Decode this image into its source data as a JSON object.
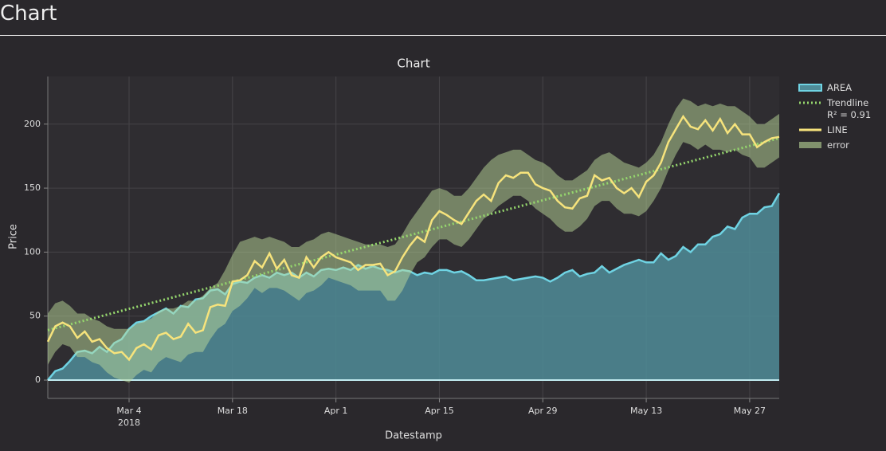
{
  "header": {
    "title": "Chart"
  },
  "chart_data": {
    "type": "line",
    "title": "Chart",
    "xlabel": "Datestamp",
    "ylabel": "Price",
    "x": [
      "2018-02-21",
      "2018-02-22",
      "2018-02-23",
      "2018-02-24",
      "2018-02-25",
      "2018-02-26",
      "2018-02-27",
      "2018-02-28",
      "2018-03-01",
      "2018-03-02",
      "2018-03-03",
      "2018-03-04",
      "2018-03-05",
      "2018-03-06",
      "2018-03-07",
      "2018-03-08",
      "2018-03-09",
      "2018-03-10",
      "2018-03-11",
      "2018-03-12",
      "2018-03-13",
      "2018-03-14",
      "2018-03-15",
      "2018-03-16",
      "2018-03-17",
      "2018-03-18",
      "2018-03-19",
      "2018-03-20",
      "2018-03-21",
      "2018-03-22",
      "2018-03-23",
      "2018-03-24",
      "2018-03-25",
      "2018-03-26",
      "2018-03-27",
      "2018-03-28",
      "2018-03-29",
      "2018-03-30",
      "2018-03-31",
      "2018-04-01",
      "2018-04-02",
      "2018-04-03",
      "2018-04-04",
      "2018-04-05",
      "2018-04-06",
      "2018-04-07",
      "2018-04-08",
      "2018-04-09",
      "2018-04-10",
      "2018-04-11",
      "2018-04-12",
      "2018-04-13",
      "2018-04-14",
      "2018-04-15",
      "2018-04-16",
      "2018-04-17",
      "2018-04-18",
      "2018-04-19",
      "2018-04-20",
      "2018-04-21",
      "2018-04-22",
      "2018-04-23",
      "2018-04-24",
      "2018-04-25",
      "2018-04-26",
      "2018-04-27",
      "2018-04-28",
      "2018-04-29",
      "2018-04-30",
      "2018-05-01",
      "2018-05-02",
      "2018-05-03",
      "2018-05-04",
      "2018-05-05",
      "2018-05-06",
      "2018-05-07",
      "2018-05-08",
      "2018-05-09",
      "2018-05-10",
      "2018-05-11",
      "2018-05-12",
      "2018-05-13",
      "2018-05-14",
      "2018-05-15",
      "2018-05-16",
      "2018-05-17",
      "2018-05-18",
      "2018-05-19",
      "2018-05-20",
      "2018-05-21",
      "2018-05-22",
      "2018-05-23",
      "2018-05-24",
      "2018-05-25",
      "2018-05-26",
      "2018-05-27",
      "2018-05-28",
      "2018-05-29",
      "2018-05-30",
      "2018-05-31"
    ],
    "xlim": [
      "2018-02-21",
      "2018-05-31"
    ],
    "xticks": [
      {
        "value": "2018-03-04",
        "label": "Mar 4\n2018"
      },
      {
        "value": "2018-03-18",
        "label": "Mar 18"
      },
      {
        "value": "2018-04-01",
        "label": "Apr 1"
      },
      {
        "value": "2018-04-15",
        "label": "Apr 15"
      },
      {
        "value": "2018-04-29",
        "label": "Apr 29"
      },
      {
        "value": "2018-05-13",
        "label": "May 13"
      },
      {
        "value": "2018-05-27",
        "label": "May 27"
      }
    ],
    "ylim": [
      -14.3,
      237.2
    ],
    "yticks": [
      0,
      50,
      100,
      150,
      200
    ],
    "grid": true,
    "legend": "right",
    "series": [
      {
        "name": "AREA",
        "type": "area",
        "color": "#6fd3e3",
        "fill": "#4f8c98",
        "values": [
          0,
          7,
          9,
          15,
          22,
          23,
          21,
          26,
          22,
          29,
          32,
          40,
          45,
          46,
          50,
          53,
          56,
          52,
          58,
          57,
          63,
          64,
          70,
          71,
          67,
          75,
          77,
          76,
          80,
          82,
          80,
          84,
          82,
          84,
          80,
          84,
          81,
          86,
          87,
          86,
          88,
          86,
          90,
          87,
          89,
          87,
          86,
          84,
          86,
          85,
          82,
          84,
          83,
          86,
          86,
          84,
          85,
          82,
          78,
          78,
          79,
          80,
          81,
          78,
          79,
          80,
          81,
          80,
          77,
          80,
          84,
          86,
          81,
          83,
          84,
          89,
          84,
          87,
          90,
          92,
          94,
          92,
          92,
          99,
          94,
          97,
          104,
          100,
          106,
          106,
          112,
          114,
          120,
          118,
          127,
          130,
          130,
          135,
          136,
          146
        ]
      },
      {
        "name": "Trendline\nR² = 0.91",
        "type": "trend",
        "color": "#95d66d",
        "x": [
          "2018-02-21",
          "2018-05-31"
        ],
        "values": [
          39,
          189
        ]
      },
      {
        "name": "LINE",
        "type": "line",
        "color": "#f6e37c",
        "values": [
          30,
          42,
          45,
          42,
          33,
          38,
          30,
          32,
          25,
          21,
          22,
          16,
          25,
          28,
          24,
          35,
          37,
          32,
          34,
          44,
          37,
          39,
          57,
          59,
          58,
          77,
          78,
          82,
          93,
          88,
          99,
          87,
          94,
          82,
          80,
          96,
          88,
          96,
          100,
          96,
          94,
          92,
          86,
          90,
          90,
          91,
          82,
          85,
          96,
          105,
          112,
          108,
          125,
          132,
          129,
          125,
          122,
          131,
          140,
          145,
          140,
          154,
          160,
          158,
          162,
          162,
          153,
          150,
          148,
          140,
          135,
          134,
          142,
          144,
          160,
          156,
          158,
          150,
          146,
          150,
          143,
          155,
          160,
          170,
          186,
          196,
          206,
          198,
          196,
          203,
          195,
          204,
          193,
          200,
          192,
          192,
          182,
          186,
          189,
          190
        ]
      },
      {
        "name": "error",
        "type": "band",
        "color": "#bcd99a",
        "upper": [
          52,
          60,
          62,
          58,
          52,
          52,
          48,
          46,
          42,
          40,
          40,
          40,
          44,
          46,
          48,
          54,
          56,
          56,
          58,
          62,
          62,
          66,
          72,
          76,
          86,
          98,
          108,
          110,
          112,
          110,
          112,
          110,
          108,
          104,
          104,
          108,
          110,
          114,
          116,
          114,
          112,
          110,
          108,
          106,
          106,
          106,
          104,
          106,
          114,
          124,
          132,
          140,
          148,
          150,
          148,
          144,
          144,
          150,
          158,
          166,
          172,
          176,
          178,
          180,
          180,
          176,
          172,
          170,
          166,
          160,
          156,
          156,
          160,
          164,
          172,
          176,
          178,
          174,
          170,
          168,
          166,
          170,
          176,
          186,
          200,
          212,
          220,
          218,
          214,
          216,
          214,
          216,
          214,
          214,
          210,
          206,
          200,
          200,
          204,
          208
        ],
        "lower": [
          12,
          22,
          28,
          26,
          18,
          18,
          14,
          12,
          6,
          2,
          0,
          -2,
          4,
          8,
          6,
          14,
          18,
          16,
          14,
          20,
          22,
          22,
          32,
          40,
          44,
          54,
          58,
          64,
          72,
          68,
          72,
          72,
          70,
          66,
          62,
          68,
          70,
          74,
          80,
          78,
          76,
          74,
          70,
          70,
          70,
          70,
          62,
          62,
          70,
          82,
          92,
          96,
          104,
          110,
          110,
          106,
          104,
          110,
          118,
          126,
          130,
          136,
          140,
          144,
          144,
          140,
          134,
          130,
          126,
          120,
          116,
          116,
          120,
          126,
          136,
          140,
          140,
          134,
          130,
          130,
          128,
          132,
          140,
          150,
          164,
          176,
          186,
          184,
          180,
          184,
          180,
          180,
          178,
          180,
          176,
          174,
          166,
          166,
          170,
          174
        ]
      }
    ]
  }
}
